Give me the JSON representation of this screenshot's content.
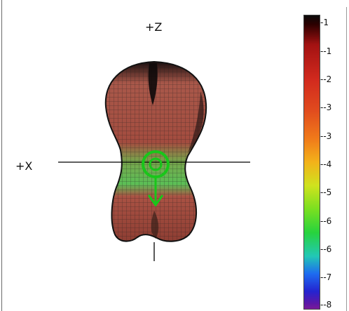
{
  "axes": {
    "z_label": "+Z",
    "x_label": "+X"
  },
  "colorbar": {
    "ticks": [
      "-1",
      "--1",
      "--2",
      "--3",
      "--3",
      "--4",
      "--5",
      "--6",
      "--6",
      "--7",
      "--8"
    ]
  },
  "colors": {
    "mesh_red": "#a84a3c",
    "mesh_green": "#6ad35a",
    "marker_green": "#19c61a",
    "axis_line": "#000000"
  },
  "icons": {
    "origin_marker": "circle-icon",
    "pointer_marker": "arrow-down-icon"
  }
}
